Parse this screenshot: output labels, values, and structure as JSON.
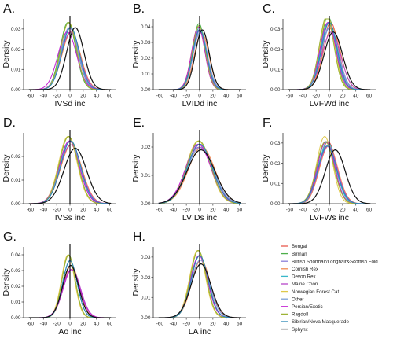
{
  "x_ticks": [
    "-60",
    "-40",
    "-20",
    "0",
    "20",
    "40",
    "60"
  ],
  "legend": [
    {
      "name": "Bengal",
      "color": "#e8594f"
    },
    {
      "name": "Birman",
      "color": "#4daf4a"
    },
    {
      "name": "British Shorthair/Longhair&Scottish Fold",
      "color": "#8a7fd9"
    },
    {
      "name": "Cornish Rex",
      "color": "#f08a52"
    },
    {
      "name": "Devon Rex",
      "color": "#39b7c9"
    },
    {
      "name": "Maine Coon",
      "color": "#b646c9"
    },
    {
      "name": "Norwegian Forest Cat",
      "color": "#dfc84a"
    },
    {
      "name": "Other",
      "color": "#7ca0d6"
    },
    {
      "name": "Persian/Exotic",
      "color": "#c21fd1"
    },
    {
      "name": "Ragdoll",
      "color": "#9db335"
    },
    {
      "name": "Sibirian/Neva Masquerade",
      "color": "#2a87b5"
    },
    {
      "name": "Sphynx",
      "color": "#111111"
    }
  ],
  "chart_data": [
    {
      "panel": "A.",
      "type": "line",
      "xlabel": "IVSd inc",
      "ylabel": "Density",
      "xlim": [
        -70,
        70
      ],
      "ylim": [
        0,
        0.035
      ],
      "yticks": [
        "0.00",
        "0.01",
        "0.02",
        "0.03"
      ],
      "series_mean": [
        0,
        -3,
        -1,
        2,
        0,
        1,
        -2,
        0,
        -4,
        -2,
        1,
        8
      ],
      "series_sd": [
        13,
        12,
        13,
        14,
        13,
        14,
        12,
        13,
        14,
        12,
        13,
        13
      ]
    },
    {
      "panel": "B.",
      "type": "line",
      "xlabel": "LVIDd inc",
      "ylabel": "Density",
      "xlim": [
        -70,
        70
      ],
      "ylim": [
        0,
        0.045
      ],
      "yticks": [
        "0.00",
        "0.01",
        "0.02",
        "0.03",
        "0.04"
      ],
      "series_mean": [
        0,
        -1,
        1,
        3,
        0,
        -1,
        -2,
        1,
        -2,
        -1,
        0,
        4
      ],
      "series_sd": [
        10,
        9.5,
        10.5,
        11,
        10,
        10.5,
        10,
        11,
        10,
        9.8,
        10.5,
        10.5
      ]
    },
    {
      "panel": "C.",
      "type": "line",
      "xlabel": "LVFWd inc",
      "ylabel": "Density",
      "xlim": [
        -70,
        70
      ],
      "ylim": [
        0,
        0.035
      ],
      "yticks": [
        "0.00",
        "0.01",
        "0.02",
        "0.03"
      ],
      "series_mean": [
        2,
        -2,
        0,
        4,
        -1,
        3,
        -3,
        1,
        -2,
        -4,
        0,
        6
      ],
      "series_sd": [
        12,
        11,
        13,
        13,
        12,
        14,
        11,
        13,
        12,
        11,
        12,
        14
      ]
    },
    {
      "panel": "D.",
      "type": "line",
      "xlabel": "IVSs inc",
      "ylabel": "Density",
      "xlim": [
        -70,
        70
      ],
      "ylim": [
        0,
        0.03
      ],
      "yticks": [
        "0.00",
        "0.01",
        "0.02"
      ],
      "series_mean": [
        0,
        -2,
        1,
        2,
        0,
        1,
        -3,
        0,
        -1,
        -2,
        1,
        8
      ],
      "series_sd": [
        15,
        14,
        15,
        16,
        15,
        16,
        14,
        15,
        15,
        14,
        15,
        17
      ]
    },
    {
      "panel": "E.",
      "type": "line",
      "xlabel": "LVIDs inc",
      "ylabel": "Density",
      "xlim": [
        -70,
        70
      ],
      "ylim": [
        0,
        0.025
      ],
      "yticks": [
        "0.00",
        "0.01",
        "0.02"
      ],
      "series_mean": [
        0,
        -1,
        1,
        3,
        0,
        -1,
        -2,
        1,
        -2,
        -1,
        0,
        2
      ],
      "series_sd": [
        19,
        18,
        19,
        20,
        19,
        20,
        18,
        20,
        19,
        18,
        19,
        21
      ]
    },
    {
      "panel": "F.",
      "type": "line",
      "xlabel": "LVFWs inc",
      "ylabel": "Density",
      "xlim": [
        -70,
        70
      ],
      "ylim": [
        0,
        0.035
      ],
      "yticks": [
        "0.00",
        "0.01",
        "0.02",
        "0.03"
      ],
      "series_mean": [
        -2,
        -5,
        -4,
        -1,
        -3,
        -2,
        -7,
        -3,
        -5,
        -6,
        -3,
        9
      ],
      "series_sd": [
        13,
        13,
        14,
        14,
        13,
        14,
        12,
        14,
        13,
        13,
        14,
        15
      ]
    },
    {
      "panel": "G.",
      "type": "line",
      "xlabel": "Ao inc",
      "ylabel": "Density",
      "xlim": [
        -70,
        70
      ],
      "ylim": [
        0,
        0.045
      ],
      "yticks": [
        "0.00",
        "0.01",
        "0.02",
        "0.03",
        "0.04"
      ],
      "series_mean": [
        0,
        -2,
        0,
        2,
        0,
        3,
        -3,
        1,
        2,
        -2,
        0,
        1
      ],
      "series_sd": [
        11,
        10,
        11,
        12,
        11,
        13,
        10,
        12,
        13,
        10,
        11,
        12
      ]
    },
    {
      "panel": "H.",
      "type": "line",
      "xlabel": "LA inc",
      "ylabel": "Density",
      "xlim": [
        -70,
        70
      ],
      "ylim": [
        0,
        0.035
      ],
      "yticks": [
        "0.00",
        "0.01",
        "0.02",
        "0.03"
      ],
      "series_mean": [
        0,
        -2,
        0,
        2,
        0,
        1,
        -3,
        1,
        -1,
        -2,
        0,
        2
      ],
      "series_sd": [
        13,
        12,
        13,
        14,
        13,
        14,
        12,
        14,
        13,
        12,
        13,
        15
      ]
    }
  ]
}
